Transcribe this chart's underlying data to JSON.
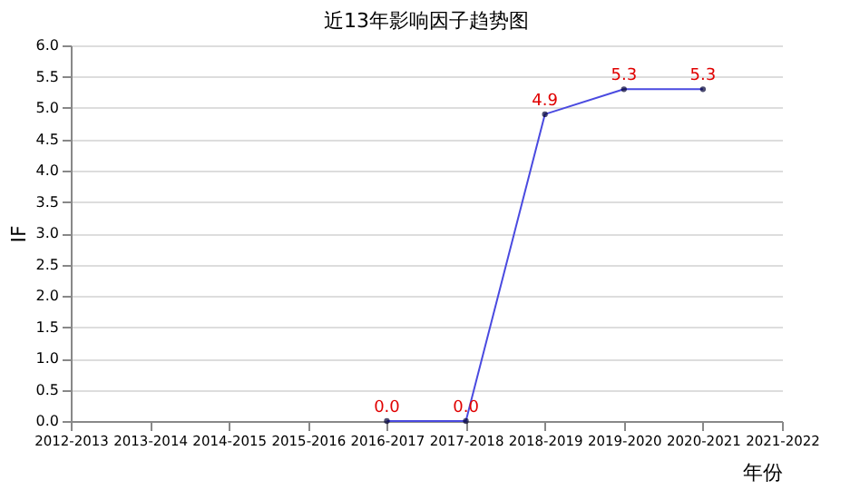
{
  "chart_data": {
    "type": "line",
    "title": "近13年影响因子趋势图",
    "xlabel": "年份",
    "ylabel": "IF",
    "categories": [
      "2012-2013",
      "2013-2014",
      "2014-2015",
      "2015-2016",
      "2016-2017",
      "2017-2018",
      "2018-2019",
      "2019-2020",
      "2020-2021",
      "2021-2022"
    ],
    "series": [
      {
        "color": "#4a4ae0",
        "values": [
          null,
          null,
          null,
          null,
          0.0,
          0.0,
          4.9,
          5.3,
          5.3,
          null
        ],
        "value_labels": [
          null,
          null,
          null,
          null,
          "0.0",
          "0.0",
          "4.9",
          "5.3",
          "5.3",
          null
        ]
      }
    ],
    "ylim": [
      0,
      6
    ],
    "yticks": [
      {
        "value": 0,
        "label": "0.0"
      },
      {
        "value": 0.5,
        "label": "0.5"
      },
      {
        "value": 1,
        "label": "1.0"
      },
      {
        "value": 1.5,
        "label": "1.5"
      },
      {
        "value": 2,
        "label": "2.0"
      },
      {
        "value": 2.5,
        "label": "2.5"
      },
      {
        "value": 3,
        "label": "3.0"
      },
      {
        "value": 3.5,
        "label": "3.5"
      },
      {
        "value": 4,
        "label": "4.0"
      },
      {
        "value": 4.5,
        "label": "4.5"
      },
      {
        "value": 5,
        "label": "5.0"
      },
      {
        "value": 5.5,
        "label": "5.5"
      },
      {
        "value": 6,
        "label": "6.0"
      }
    ],
    "grid": "y",
    "marker": "circle",
    "line_style": "solid"
  }
}
